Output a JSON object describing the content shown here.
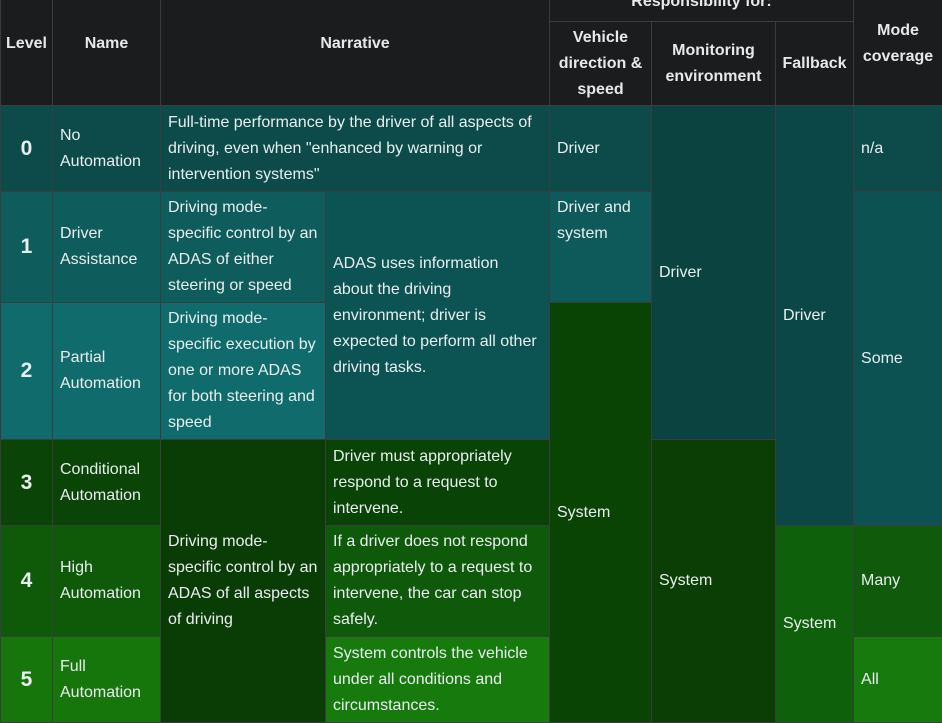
{
  "headers": {
    "level": "Level",
    "name": "Name",
    "narrative": "Narrative",
    "responsibility": "Responsibility for:",
    "vehicle_direction": "Vehicle direction & speed",
    "monitoring": "Monitoring environment",
    "fallback": "Fallback",
    "mode_coverage": "Mode coverage"
  },
  "rows": [
    {
      "level": "0",
      "name": "No Automation",
      "narrative": "Full-time performance by the driver of all aspects of driving, even when \"enhanced by warning or intervention systems\"",
      "vehicle": "Driver",
      "mode": "n/a"
    },
    {
      "level": "1",
      "name": "Driver Assistance",
      "narrative": "Driving mode-specific control by an ADAS of either steering or speed",
      "vehicle": "Driver and system"
    },
    {
      "level": "2",
      "name": "Partial Automation",
      "narrative": "Driving mode-specific execution by one or more ADAS for both steering and speed"
    },
    {
      "level": "3",
      "name": "Conditional Automation",
      "detail": "Driver must appropriately respond to a request to intervene."
    },
    {
      "level": "4",
      "name": "High Automation",
      "detail": "If a driver does not respond appropriately to a request to intervene, the car can stop safely.",
      "mode": "Many"
    },
    {
      "level": "5",
      "name": "Full Automation",
      "detail": "System controls the vehicle under all conditions and circumstances.",
      "mode": "All"
    }
  ],
  "merged": {
    "adas_info": "ADAS uses information about the driving environment; driver is expected to perform all other driving tasks.",
    "ads_control": "Driving mode-specific control by an ADAS of all aspects of driving",
    "monitoring_driver": "Driver",
    "monitoring_system": "System",
    "fallback_driver": "Driver",
    "fallback_system": "System",
    "vehicle_system": "System",
    "mode_some": "Some"
  }
}
